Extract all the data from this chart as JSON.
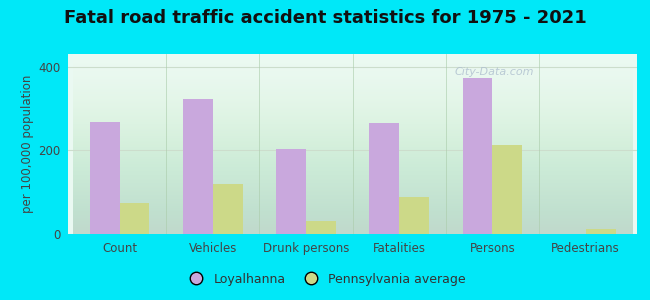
{
  "title": "Fatal road traffic accident statistics for 1975 - 2021",
  "categories": [
    "Count",
    "Vehicles",
    "Drunk persons",
    "Fatalities",
    "Persons",
    "Pedestrians"
  ],
  "loyalhanna": [
    268,
    322,
    203,
    265,
    373,
    0
  ],
  "pa_average": [
    73,
    120,
    30,
    88,
    213,
    12
  ],
  "loyalhanna_color": "#c9a8dd",
  "pa_average_color": "#ccd988",
  "ylabel": "per 100,000 population",
  "ylim": [
    0,
    430
  ],
  "yticks": [
    0,
    200,
    400
  ],
  "bg_top_color": "#f0fff8",
  "bg_bottom_color": "#d8f5e8",
  "outer_background": "#00e8f8",
  "bar_width": 0.32,
  "legend_loyalhanna": "Loyalhanna",
  "legend_pa": "Pennsylvania average",
  "watermark": "City-Data.com",
  "title_fontsize": 13,
  "axis_label_fontsize": 8.5,
  "tick_fontsize": 8.5,
  "divider_color": "#aaccaa",
  "grid_color": "#ccddcc"
}
